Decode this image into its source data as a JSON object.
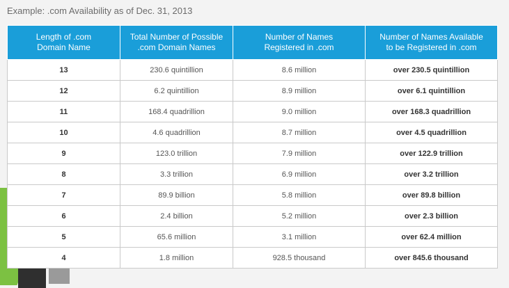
{
  "caption": "Example: .com Availability as of Dec. 31, 2013",
  "headers": [
    [
      "Length of .com",
      "Domain Name"
    ],
    [
      "Total Number of Possible",
      ".com Domain Names"
    ],
    [
      "Number of Names",
      "Registered in .com"
    ],
    [
      "Number of Names Available",
      "to be Registered in .com"
    ]
  ],
  "rows": [
    [
      "13",
      "230.6 quintillion",
      "8.6 million",
      "over 230.5 quintillion"
    ],
    [
      "12",
      "6.2 quintillion",
      "8.9 million",
      "over 6.1 quintillion"
    ],
    [
      "11",
      "168.4 quadrillion",
      "9.0 million",
      "over 168.3 quadrillion"
    ],
    [
      "10",
      "4.6 quadrillion",
      "8.7 million",
      "over 4.5 quadrillion"
    ],
    [
      "9",
      "123.0 trillion",
      "7.9 million",
      "over 122.9 trillion"
    ],
    [
      "8",
      "3.3 trillion",
      "6.9 million",
      "over 3.2 trillion"
    ],
    [
      "7",
      "89.9 billion",
      "5.8 million",
      "over 89.8 billion"
    ],
    [
      "6",
      "2.4 billion",
      "5.2 million",
      "over 2.3 billion"
    ],
    [
      "5",
      "65.6 million",
      "3.1 million",
      "over 62.4 million"
    ],
    [
      "4",
      "1.8 million",
      "928.5 thousand",
      "over 845.6 thousand"
    ]
  ],
  "colors": {
    "header_bg": "#1a9ed9",
    "accent_green": "#7cc142"
  }
}
